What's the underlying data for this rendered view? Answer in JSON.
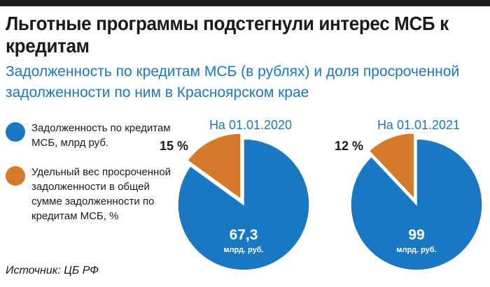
{
  "title": "Льготные программы подстегнули интерес МСБ к кредитам",
  "subtitle": "Задолженность по кредитам МСБ (в рублях) и доля просроченной задолженности по ним в Красноярском крае",
  "legend": [
    {
      "label": "Задолженность по кредитам МСБ, млрд руб.",
      "color": "#1a78c2"
    },
    {
      "label": "Удельный вес просроченной задолженности в общей сумме задолженности по кредитам МСБ, %",
      "color": "#d47a2a"
    }
  ],
  "source": "Источник: ЦБ РФ",
  "chart_data": [
    {
      "type": "pie",
      "title": "На 01.01.2020",
      "slices": [
        {
          "name": "Задолженность по кредитам МСБ",
          "value": 85,
          "color": "#1a78c2"
        },
        {
          "name": "Удельный вес просроченной задолженности",
          "value": 15,
          "color": "#d47a2a"
        }
      ],
      "overdue_label": "15 %",
      "center_value": "67,3",
      "center_unit": "млрд. руб."
    },
    {
      "type": "pie",
      "title": "На 01.01.2021",
      "slices": [
        {
          "name": "Задолженность по кредитам МСБ",
          "value": 88,
          "color": "#1a78c2"
        },
        {
          "name": "Удельный вес просроченной задолженности",
          "value": 12,
          "color": "#d47a2a"
        }
      ],
      "overdue_label": "12 %",
      "center_value": "99",
      "center_unit": "млрд. руб."
    }
  ]
}
